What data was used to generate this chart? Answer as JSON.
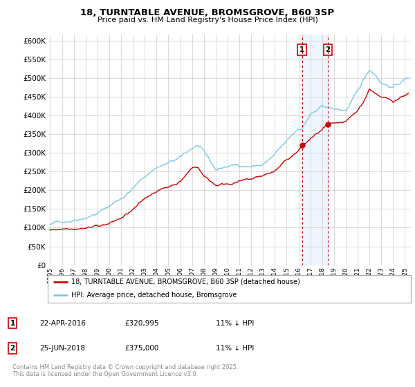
{
  "title_line1": "18, TURNTABLE AVENUE, BROMSGROVE, B60 3SP",
  "title_line2": "Price paid vs. HM Land Registry's House Price Index (HPI)",
  "ylabel_ticks": [
    "£0",
    "£50K",
    "£100K",
    "£150K",
    "£200K",
    "£250K",
    "£300K",
    "£350K",
    "£400K",
    "£450K",
    "£500K",
    "£550K",
    "£600K"
  ],
  "ytick_values": [
    0,
    50000,
    100000,
    150000,
    200000,
    250000,
    300000,
    350000,
    400000,
    450000,
    500000,
    550000,
    600000
  ],
  "ylim": [
    0,
    615000
  ],
  "xlim_start": 1994.8,
  "xlim_end": 2025.5,
  "xtick_labels": [
    "1995",
    "1996",
    "1997",
    "1998",
    "1999",
    "2000",
    "2001",
    "2002",
    "2003",
    "2004",
    "2005",
    "2006",
    "2007",
    "2008",
    "2009",
    "2010",
    "2011",
    "2012",
    "2013",
    "2014",
    "2015",
    "2016",
    "2017",
    "2018",
    "2019",
    "2020",
    "2021",
    "2022",
    "2023",
    "2024",
    "2025"
  ],
  "hpi_color": "#7ec8e3",
  "price_color": "#cc0000",
  "vline_color": "#cc0000",
  "shade_color": "#ddeeff",
  "marker1_x": 2016.3,
  "marker2_x": 2018.48,
  "marker1_y": 320995,
  "marker2_y": 375000,
  "legend_label1": "18, TURNTABLE AVENUE, BROMSGROVE, B60 3SP (detached house)",
  "legend_label2": "HPI: Average price, detached house, Bromsgrove",
  "table_row1": [
    "1",
    "22-APR-2016",
    "£320,995",
    "11% ↓ HPI"
  ],
  "table_row2": [
    "2",
    "25-JUN-2018",
    "£375,000",
    "11% ↓ HPI"
  ],
  "footnote": "Contains HM Land Registry data © Crown copyright and database right 2025.\nThis data is licensed under the Open Government Licence v3.0.",
  "background_color": "#ffffff",
  "grid_color": "#cccccc",
  "hpi_breakpoints": [
    1995,
    1996,
    1997,
    1998,
    1999,
    2000,
    2001,
    2002,
    2003,
    2004,
    2005,
    2006,
    2007,
    2007.5,
    2008,
    2009,
    2010,
    2011,
    2012,
    2013,
    2014,
    2015,
    2016,
    2016.3,
    2017,
    2018,
    2018.5,
    2019,
    2020,
    2021,
    2021.5,
    2022,
    2022.5,
    2023,
    2024,
    2025,
    2025.3
  ],
  "hpi_values": [
    108000,
    115000,
    125000,
    138000,
    150000,
    168000,
    190000,
    218000,
    248000,
    275000,
    285000,
    295000,
    320000,
    328000,
    305000,
    255000,
    265000,
    268000,
    268000,
    272000,
    295000,
    325000,
    360000,
    363000,
    400000,
    415000,
    415000,
    408000,
    405000,
    450000,
    480000,
    510000,
    500000,
    480000,
    470000,
    490000,
    495000
  ],
  "price_breakpoints": [
    1995,
    1996,
    1997,
    1998,
    1999,
    2000,
    2001,
    2002,
    2003,
    2004,
    2005,
    2006,
    2007,
    2007.5,
    2008,
    2009,
    2010,
    2011,
    2012,
    2013,
    2014,
    2015,
    2016,
    2016.3,
    2017,
    2018,
    2018.48,
    2019,
    2020,
    2021,
    2021.5,
    2022,
    2022.5,
    2023,
    2024,
    2025,
    2025.3
  ],
  "price_values": [
    92000,
    98000,
    104000,
    110000,
    115000,
    122000,
    135000,
    155000,
    180000,
    205000,
    215000,
    232000,
    268000,
    272000,
    248000,
    225000,
    230000,
    238000,
    240000,
    248000,
    260000,
    285000,
    310000,
    321000,
    340000,
    362000,
    375000,
    368000,
    368000,
    395000,
    420000,
    455000,
    445000,
    430000,
    420000,
    440000,
    445000
  ]
}
